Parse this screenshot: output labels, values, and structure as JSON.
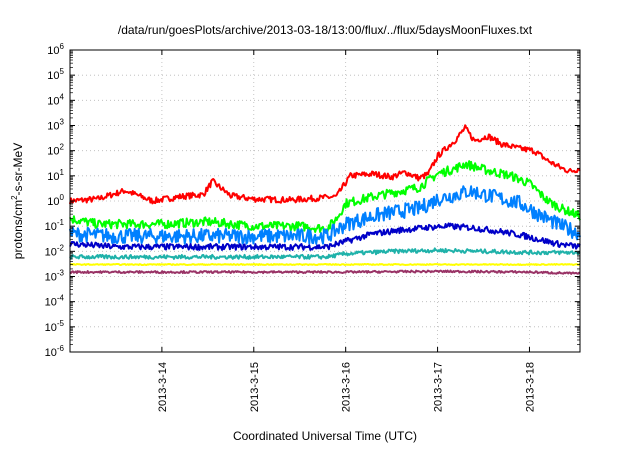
{
  "chart_data": {
    "type": "line",
    "title": "/data/run/goesPlots/archive/2013-03-18/13:00/flux/../flux/5daysMoonFluxes.txt",
    "xlabel": "Coordinated Universal Time (UTC)",
    "ylabel": {
      "prefix": "protons/cm",
      "sup": "2",
      "suffix": "-s-sr-MeV"
    },
    "yscale": "log",
    "ylim": [
      1e-06,
      1000000.0
    ],
    "xlim": [
      13.0,
      18.55
    ],
    "x_unit": "day of March 2013",
    "grid": true,
    "x_ticks": [
      {
        "x": 14,
        "label": "2013-3-14"
      },
      {
        "x": 15,
        "label": "2013-3-15"
      },
      {
        "x": 16,
        "label": "2013-3-16"
      },
      {
        "x": 17,
        "label": "2013-3-17"
      },
      {
        "x": 18,
        "label": "2013-3-18"
      }
    ],
    "y_ticks": [
      {
        "exp": 6,
        "base": "10",
        "sup": "6"
      },
      {
        "exp": 5,
        "base": "10",
        "sup": "5"
      },
      {
        "exp": 4,
        "base": "10",
        "sup": "4"
      },
      {
        "exp": 3,
        "base": "10",
        "sup": "3"
      },
      {
        "exp": 2,
        "base": "10",
        "sup": "2"
      },
      {
        "exp": 1,
        "base": "10",
        "sup": "1"
      },
      {
        "exp": 0,
        "base": "10",
        "sup": "0"
      },
      {
        "exp": -1,
        "base": "10",
        "sup": "-1"
      },
      {
        "exp": -2,
        "base": "10",
        "sup": "-2"
      },
      {
        "exp": -3,
        "base": "10",
        "sup": "-3"
      },
      {
        "exp": -4,
        "base": "10",
        "sup": "-4"
      },
      {
        "exp": -5,
        "base": "10",
        "sup": "-5"
      },
      {
        "exp": -6,
        "base": "10",
        "sup": "-6"
      }
    ],
    "series": [
      {
        "color": "#ff0000",
        "noise": 0.12,
        "points": [
          [
            13.0,
            1.0
          ],
          [
            13.3,
            1.2
          ],
          [
            13.6,
            2.6
          ],
          [
            13.9,
            1.0
          ],
          [
            14.2,
            1.5
          ],
          [
            14.45,
            1.8
          ],
          [
            14.55,
            6.0
          ],
          [
            14.75,
            1.6
          ],
          [
            15.0,
            1.2
          ],
          [
            15.4,
            1.1
          ],
          [
            15.7,
            1.3
          ],
          [
            15.9,
            1.5
          ],
          [
            16.05,
            10
          ],
          [
            16.3,
            12
          ],
          [
            16.5,
            9
          ],
          [
            16.65,
            14
          ],
          [
            16.8,
            8
          ],
          [
            16.9,
            12
          ],
          [
            17.0,
            60
          ],
          [
            17.2,
            280
          ],
          [
            17.3,
            800
          ],
          [
            17.4,
            250
          ],
          [
            17.55,
            380
          ],
          [
            17.7,
            180
          ],
          [
            17.9,
            120
          ],
          [
            18.05,
            100
          ],
          [
            18.2,
            40
          ],
          [
            18.35,
            20
          ],
          [
            18.45,
            15
          ],
          [
            18.55,
            20
          ]
        ]
      },
      {
        "color": "#00ff00",
        "noise": 0.18,
        "points": [
          [
            13.0,
            0.2
          ],
          [
            13.3,
            0.12
          ],
          [
            13.6,
            0.12
          ],
          [
            14.0,
            0.12
          ],
          [
            14.5,
            0.15
          ],
          [
            15.0,
            0.1
          ],
          [
            15.5,
            0.1
          ],
          [
            15.8,
            0.08
          ],
          [
            15.9,
            0.2
          ],
          [
            16.0,
            0.8
          ],
          [
            16.3,
            1.5
          ],
          [
            16.6,
            2.5
          ],
          [
            16.8,
            3.5
          ],
          [
            17.0,
            12
          ],
          [
            17.2,
            20
          ],
          [
            17.3,
            30
          ],
          [
            17.5,
            18
          ],
          [
            17.8,
            10
          ],
          [
            18.0,
            5
          ],
          [
            18.2,
            1.0
          ],
          [
            18.35,
            0.5
          ],
          [
            18.55,
            0.25
          ]
        ]
      },
      {
        "color": "#0080ff",
        "noise": 0.3,
        "points": [
          [
            13.0,
            0.05
          ],
          [
            13.5,
            0.04
          ],
          [
            14.0,
            0.04
          ],
          [
            14.5,
            0.04
          ],
          [
            15.0,
            0.04
          ],
          [
            15.5,
            0.04
          ],
          [
            15.8,
            0.04
          ],
          [
            16.0,
            0.12
          ],
          [
            16.3,
            0.25
          ],
          [
            16.6,
            0.4
          ],
          [
            16.8,
            0.5
          ],
          [
            17.0,
            1.2
          ],
          [
            17.2,
            1.8
          ],
          [
            17.35,
            2.5
          ],
          [
            17.6,
            1.5
          ],
          [
            17.9,
            0.8
          ],
          [
            18.1,
            0.3
          ],
          [
            18.3,
            0.12
          ],
          [
            18.55,
            0.05
          ]
        ]
      },
      {
        "color": "#0000c8",
        "noise": 0.12,
        "points": [
          [
            13.0,
            0.02
          ],
          [
            13.5,
            0.015
          ],
          [
            14.0,
            0.015
          ],
          [
            14.5,
            0.015
          ],
          [
            15.0,
            0.015
          ],
          [
            15.5,
            0.015
          ],
          [
            15.8,
            0.015
          ],
          [
            16.0,
            0.025
          ],
          [
            16.3,
            0.05
          ],
          [
            16.6,
            0.07
          ],
          [
            16.9,
            0.09
          ],
          [
            17.1,
            0.1
          ],
          [
            17.4,
            0.085
          ],
          [
            17.7,
            0.06
          ],
          [
            17.9,
            0.045
          ],
          [
            18.1,
            0.03
          ],
          [
            18.3,
            0.02
          ],
          [
            18.55,
            0.015
          ]
        ]
      },
      {
        "color": "#20b2aa",
        "noise": 0.08,
        "points": [
          [
            13.0,
            0.006
          ],
          [
            13.5,
            0.006
          ],
          [
            14.0,
            0.006
          ],
          [
            14.5,
            0.006
          ],
          [
            15.0,
            0.006
          ],
          [
            15.5,
            0.006
          ],
          [
            15.8,
            0.006
          ],
          [
            16.0,
            0.008
          ],
          [
            16.5,
            0.01
          ],
          [
            17.0,
            0.011
          ],
          [
            17.5,
            0.01
          ],
          [
            18.0,
            0.009
          ],
          [
            18.55,
            0.009
          ]
        ]
      },
      {
        "color": "#ffff00",
        "noise": 0.02,
        "points": [
          [
            13.0,
            0.003
          ],
          [
            14.0,
            0.003
          ],
          [
            15.0,
            0.003
          ],
          [
            16.0,
            0.003
          ],
          [
            17.0,
            0.003
          ],
          [
            18.0,
            0.003
          ],
          [
            18.55,
            0.003
          ]
        ]
      },
      {
        "color": "#993366",
        "noise": 0.04,
        "points": [
          [
            13.0,
            0.0015
          ],
          [
            14.0,
            0.0015
          ],
          [
            15.0,
            0.0015
          ],
          [
            16.0,
            0.0015
          ],
          [
            17.0,
            0.0016
          ],
          [
            18.0,
            0.0015
          ],
          [
            18.55,
            0.0013
          ]
        ]
      }
    ]
  }
}
